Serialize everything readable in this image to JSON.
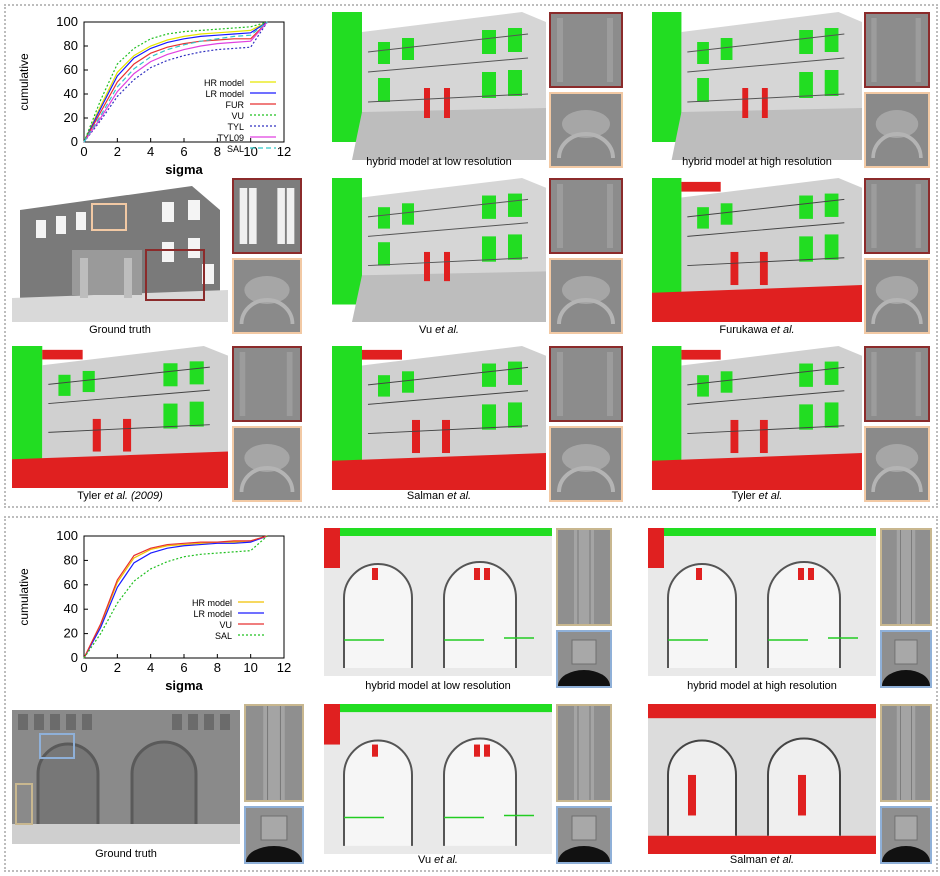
{
  "figure_top": {
    "chart_data": {
      "type": "line",
      "xlabel": "sigma",
      "ylabel": "cumulative",
      "xlim": [
        0,
        12
      ],
      "ylim": [
        0,
        100
      ],
      "xticks": [
        0,
        2,
        4,
        6,
        8,
        10,
        12
      ],
      "yticks": [
        0,
        20,
        40,
        60,
        80,
        100
      ],
      "legend_position": "bottom-right",
      "x": [
        0,
        1,
        2,
        3,
        4,
        5,
        6,
        7,
        8,
        9,
        10,
        11
      ],
      "series": [
        {
          "name": "HR model",
          "color": "#e6e600",
          "dash": "solid",
          "values": [
            0,
            30,
            58,
            72,
            80,
            85,
            88,
            90,
            91,
            92,
            93,
            100
          ]
        },
        {
          "name": "LR model",
          "color": "#1a1aff",
          "dash": "solid",
          "values": [
            0,
            28,
            55,
            70,
            78,
            83,
            86,
            88,
            89,
            90,
            91,
            100
          ]
        },
        {
          "name": "FUR",
          "color": "#e83030",
          "dash": "solid",
          "values": [
            0,
            25,
            50,
            65,
            74,
            79,
            82,
            84,
            85,
            86,
            86,
            100
          ]
        },
        {
          "name": "VU",
          "color": "#20c020",
          "dash": "dotted",
          "values": [
            0,
            35,
            65,
            78,
            86,
            90,
            92,
            93,
            94,
            95,
            96,
            100
          ]
        },
        {
          "name": "TYL",
          "color": "#3030c0",
          "dash": "dotted",
          "values": [
            0,
            18,
            38,
            52,
            62,
            68,
            72,
            75,
            77,
            78,
            79,
            100
          ]
        },
        {
          "name": "TYL09",
          "color": "#e040e0",
          "dash": "solid",
          "values": [
            0,
            20,
            42,
            57,
            67,
            73,
            77,
            80,
            82,
            83,
            84,
            100
          ]
        },
        {
          "name": "SAL",
          "color": "#30c8c8",
          "dash": "dashed",
          "values": [
            0,
            22,
            46,
            61,
            71,
            77,
            81,
            84,
            86,
            88,
            89,
            100
          ]
        }
      ]
    },
    "captions": {
      "hybrid_low": "hybrid model at low resolution",
      "hybrid_high": "hybrid model at high resolution",
      "ground_truth": "Ground truth",
      "vu_name": "Vu",
      "furukawa_name": "Furukawa",
      "tyler2009_name": "Tyler",
      "tyler2009_year": "(2009)",
      "salman_name": "Salman",
      "tyler_name": "Tyler",
      "et_al": "et al."
    }
  },
  "figure_bottom": {
    "chart_data": {
      "type": "line",
      "xlabel": "sigma",
      "ylabel": "cumulative",
      "xlim": [
        0,
        12
      ],
      "ylim": [
        0,
        100
      ],
      "xticks": [
        0,
        2,
        4,
        6,
        8,
        10,
        12
      ],
      "yticks": [
        0,
        20,
        40,
        60,
        80,
        100
      ],
      "legend_position": "center-right",
      "x": [
        0,
        1,
        2,
        3,
        4,
        5,
        6,
        7,
        8,
        9,
        10,
        11
      ],
      "series": [
        {
          "name": "HR model",
          "color": "#f0c000",
          "dash": "solid",
          "values": [
            0,
            27,
            62,
            82,
            89,
            92,
            93,
            94,
            95,
            95,
            96,
            100
          ]
        },
        {
          "name": "LR model",
          "color": "#1a1aff",
          "dash": "solid",
          "values": [
            0,
            25,
            58,
            78,
            86,
            90,
            92,
            93,
            94,
            94,
            95,
            100
          ]
        },
        {
          "name": "VU",
          "color": "#e83030",
          "dash": "solid",
          "values": [
            0,
            28,
            64,
            84,
            90,
            93,
            94,
            95,
            95,
            96,
            96,
            100
          ]
        },
        {
          "name": "SAL",
          "color": "#20c020",
          "dash": "dotted",
          "values": [
            0,
            20,
            45,
            63,
            73,
            79,
            83,
            85,
            86,
            87,
            88,
            100
          ]
        }
      ]
    },
    "captions": {
      "hybrid_low": "hybrid model at low resolution",
      "hybrid_high": "hybrid model at high resolution",
      "ground_truth": "Ground truth",
      "vu_name": "Vu",
      "salman_name": "Salman",
      "et_al": "et al."
    }
  }
}
